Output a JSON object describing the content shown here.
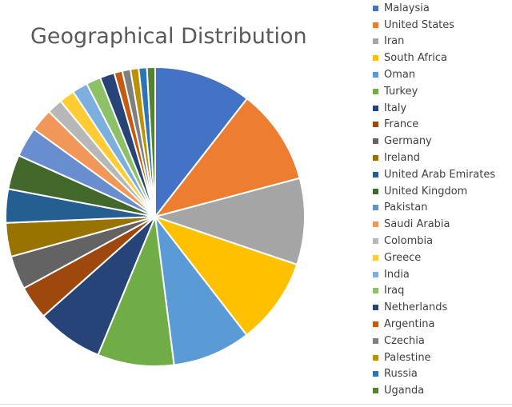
{
  "chart_data": {
    "type": "pie",
    "title": "Geographical Distribution",
    "legend_position": "right",
    "categories": [
      "Malaysia",
      "United States",
      "Iran",
      "South Africa",
      "Oman",
      "Turkey",
      "Italy",
      "France",
      "Germany",
      "Ireland",
      "United Arab Emirates",
      "United Kingdom",
      "Pakistan",
      "Saudi Arabia",
      "Colombia",
      "Greece",
      "India",
      "Iraq",
      "Netherlands",
      "Argentina",
      "Czechia",
      "Palestine",
      "Russia",
      "Uganda"
    ],
    "values": [
      10.7,
      10.5,
      9.5,
      9.5,
      8.6,
      8.4,
      7.3,
      3.7,
      3.7,
      3.7,
      3.7,
      3.8,
      3.3,
      2.5,
      1.7,
      1.7,
      1.7,
      1.6,
      1.6,
      0.9,
      0.9,
      0.9,
      0.9,
      0.9
    ],
    "colors": [
      "#4472C4",
      "#ED7D31",
      "#A5A5A5",
      "#FFC000",
      "#5B9BD5",
      "#70AD47",
      "#264478",
      "#9E480E",
      "#636363",
      "#997300",
      "#255E91",
      "#43682B",
      "#698ED0",
      "#F1975A",
      "#B7B7B7",
      "#FFCD33",
      "#7CAFDD",
      "#8CC168",
      "#264478",
      "#C55A11",
      "#7F7F7F",
      "#BF9000",
      "#2E75B6",
      "#548235"
    ]
  }
}
